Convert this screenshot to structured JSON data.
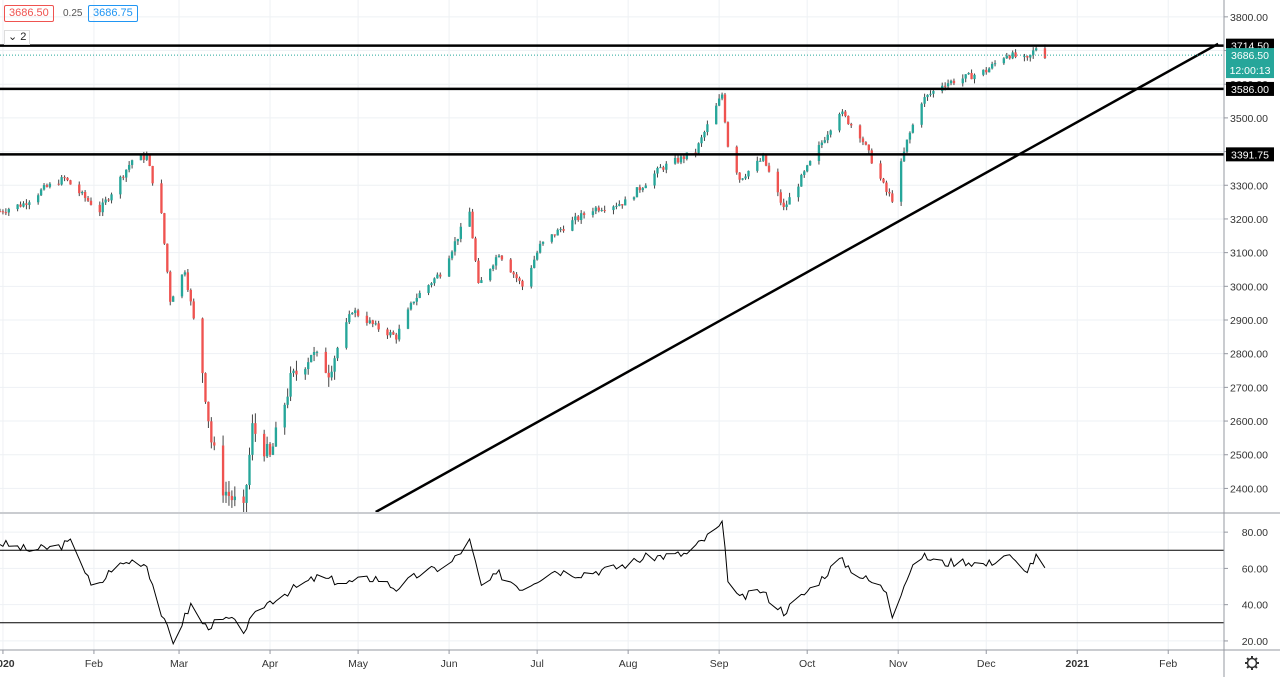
{
  "quotes": {
    "bid": "3686.50",
    "spread": "0.25",
    "ask": "3686.75"
  },
  "collapse_control": {
    "arrow": "⌄",
    "count": "2"
  },
  "colors": {
    "up": "#26a69a",
    "down": "#ef5350",
    "grid": "#eef1f4",
    "line": "#000000",
    "rsi_line": "#000000",
    "price_tag": "#26a69a",
    "bid": "#ef5350",
    "ask": "#2196f3"
  },
  "icons": {
    "settings": "gear-icon"
  },
  "chart_data": [
    {
      "type": "candlestick",
      "title": "",
      "y_range": [
        2330,
        3850
      ],
      "y_ticks": [
        "3800.00",
        "3700.00",
        "3600.00",
        "3500.00",
        "3400.00",
        "3300.00",
        "3200.00",
        "3100.00",
        "3000.00",
        "2900.00",
        "2800.00",
        "2700.00",
        "2600.00",
        "2500.00",
        "2400.00"
      ],
      "x_ticks": [
        "2020",
        "Feb",
        "Mar",
        "Apr",
        "May",
        "Jun",
        "Jul",
        "Aug",
        "Sep",
        "Oct",
        "Nov",
        "Dec",
        "2021",
        "Feb"
      ],
      "x_tick_dates": [
        "2020-01-01",
        "2020-02-01",
        "2020-03-01",
        "2020-04-01",
        "2020-05-01",
        "2020-06-01",
        "2020-07-01",
        "2020-08-01",
        "2020-09-01",
        "2020-10-01",
        "2020-11-01",
        "2020-12-01",
        "2021-01-01",
        "2021-02-01"
      ],
      "x_range": [
        "2019-12-31",
        "2021-02-20"
      ],
      "closes": [
        [
          "2019-12-31",
          3223
        ],
        [
          "2020-01-08",
          3245
        ],
        [
          "2020-01-15",
          3290
        ],
        [
          "2020-01-22",
          3320
        ],
        [
          "2020-01-28",
          3270
        ],
        [
          "2020-02-03",
          3225
        ],
        [
          "2020-02-10",
          3320
        ],
        [
          "2020-02-14",
          3375
        ],
        [
          "2020-02-19",
          3385
        ],
        [
          "2020-02-24",
          3210
        ],
        [
          "2020-02-27",
          2960
        ],
        [
          "2020-03-03",
          3050
        ],
        [
          "2020-03-09",
          2750
        ],
        [
          "2020-03-12",
          2540
        ],
        [
          "2020-03-16",
          2400
        ],
        [
          "2020-03-23",
          2330
        ],
        [
          "2020-03-26",
          2580
        ],
        [
          "2020-04-01",
          2490
        ],
        [
          "2020-04-08",
          2720
        ],
        [
          "2020-04-15",
          2800
        ],
        [
          "2020-04-21",
          2750
        ],
        [
          "2020-04-29",
          2930
        ],
        [
          "2020-05-07",
          2880
        ],
        [
          "2020-05-14",
          2850
        ],
        [
          "2020-05-20",
          2960
        ],
        [
          "2020-05-29",
          3040
        ],
        [
          "2020-06-08",
          3220
        ],
        [
          "2020-06-11",
          3000
        ],
        [
          "2020-06-18",
          3100
        ],
        [
          "2020-06-26",
          3000
        ],
        [
          "2020-07-02",
          3120
        ],
        [
          "2020-07-09",
          3170
        ],
        [
          "2020-07-20",
          3230
        ],
        [
          "2020-07-31",
          3250
        ],
        [
          "2020-08-12",
          3350
        ],
        [
          "2020-08-24",
          3400
        ],
        [
          "2020-09-02",
          3570
        ],
        [
          "2020-09-04",
          3420
        ],
        [
          "2020-09-08",
          3320
        ],
        [
          "2020-09-16",
          3380
        ],
        [
          "2020-09-23",
          3230
        ],
        [
          "2020-10-01",
          3350
        ],
        [
          "2020-10-12",
          3520
        ],
        [
          "2020-10-19",
          3450
        ],
        [
          "2020-10-28",
          3280
        ],
        [
          "2020-10-30",
          3260
        ],
        [
          "2020-11-04",
          3430
        ],
        [
          "2020-11-09",
          3550
        ],
        [
          "2020-11-16",
          3600
        ],
        [
          "2020-11-24",
          3620
        ],
        [
          "2020-12-01",
          3640
        ],
        [
          "2020-12-08",
          3690
        ],
        [
          "2020-12-15",
          3670
        ],
        [
          "2020-12-18",
          3710
        ],
        [
          "2020-12-21",
          3686.5
        ]
      ],
      "horizontal_levels": [
        "3714.50",
        "3586.00",
        "3391.75"
      ],
      "trendline": {
        "from": [
          "2020-05-07",
          2330
        ],
        "to": [
          "2021-02-18",
          3720
        ]
      },
      "price_tag": {
        "price": "3686.50",
        "countdown": "12:00:13"
      }
    },
    {
      "type": "line",
      "title": "",
      "y_range": [
        15,
        90
      ],
      "y_ticks": [
        "80.00",
        "60.00",
        "40.00",
        "20.00"
      ],
      "levels": [
        70,
        30
      ],
      "values": [
        [
          "2019-12-31",
          74
        ],
        [
          "2020-01-10",
          70
        ],
        [
          "2020-01-20",
          72
        ],
        [
          "2020-01-25",
          75
        ],
        [
          "2020-02-01",
          46
        ],
        [
          "2020-02-07",
          60
        ],
        [
          "2020-02-15",
          65
        ],
        [
          "2020-02-19",
          62
        ],
        [
          "2020-02-25",
          30
        ],
        [
          "2020-02-28",
          20
        ],
        [
          "2020-03-05",
          40
        ],
        [
          "2020-03-10",
          28
        ],
        [
          "2020-03-18",
          32
        ],
        [
          "2020-03-23",
          26
        ],
        [
          "2020-03-30",
          40
        ],
        [
          "2020-04-08",
          48
        ],
        [
          "2020-04-17",
          55
        ],
        [
          "2020-04-27",
          52
        ],
        [
          "2020-05-07",
          55
        ],
        [
          "2020-05-14",
          49
        ],
        [
          "2020-05-22",
          57
        ],
        [
          "2020-06-01",
          62
        ],
        [
          "2020-06-08",
          75
        ],
        [
          "2020-06-12",
          50
        ],
        [
          "2020-06-18",
          57
        ],
        [
          "2020-06-26",
          49
        ],
        [
          "2020-07-06",
          59
        ],
        [
          "2020-07-15",
          57
        ],
        [
          "2020-07-27",
          60
        ],
        [
          "2020-08-07",
          66
        ],
        [
          "2020-08-21",
          68
        ],
        [
          "2020-09-02",
          84
        ],
        [
          "2020-09-04",
          55
        ],
        [
          "2020-09-08",
          43
        ],
        [
          "2020-09-15",
          48
        ],
        [
          "2020-09-23",
          36
        ],
        [
          "2020-10-05",
          53
        ],
        [
          "2020-10-12",
          65
        ],
        [
          "2020-10-19",
          56
        ],
        [
          "2020-10-28",
          48
        ],
        [
          "2020-10-30",
          35
        ],
        [
          "2020-11-04",
          55
        ],
        [
          "2020-11-09",
          67
        ],
        [
          "2020-11-16",
          63
        ],
        [
          "2020-11-24",
          64
        ],
        [
          "2020-12-01",
          62
        ],
        [
          "2020-12-08",
          68
        ],
        [
          "2020-12-14",
          58
        ],
        [
          "2020-12-18",
          66
        ],
        [
          "2020-12-21",
          60
        ]
      ]
    }
  ]
}
